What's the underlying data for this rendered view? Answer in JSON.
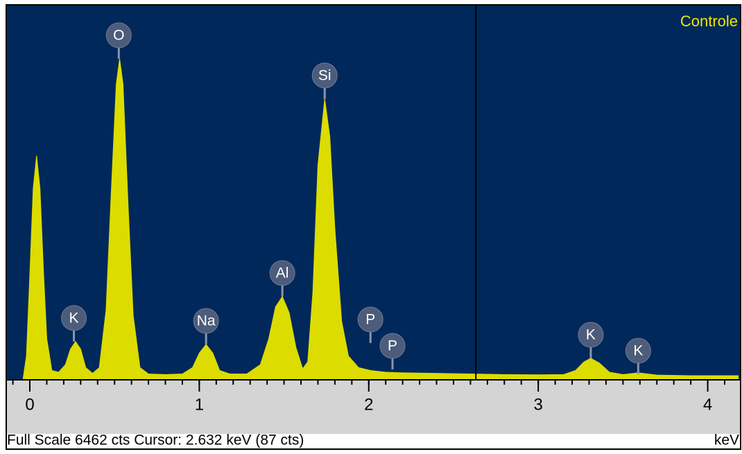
{
  "chart_data": {
    "type": "spectrum",
    "title": "Controle",
    "x_label": "keV",
    "status": "Full Scale 6462 cts  Cursor: 2.632 keV (87 cts)",
    "color": "#dcdc00",
    "background": "#00285a",
    "xlim": [
      -0.135,
      4.19
    ],
    "ylim": [
      0,
      6462
    ],
    "xticks": [
      0,
      1,
      2,
      3,
      4
    ],
    "xminor_step": 0.1,
    "cursor": 2.632,
    "x": [
      -0.04,
      -0.02,
      0.0,
      0.02,
      0.04,
      0.06,
      0.08,
      0.1,
      0.13,
      0.17,
      0.21,
      0.24,
      0.27,
      0.3,
      0.33,
      0.37,
      0.41,
      0.45,
      0.48,
      0.51,
      0.53,
      0.55,
      0.58,
      0.61,
      0.65,
      0.7,
      0.8,
      0.9,
      0.96,
      1.0,
      1.04,
      1.08,
      1.12,
      1.18,
      1.28,
      1.36,
      1.41,
      1.45,
      1.49,
      1.53,
      1.57,
      1.61,
      1.64,
      1.67,
      1.7,
      1.74,
      1.77,
      1.8,
      1.84,
      1.88,
      1.94,
      2.01,
      2.1,
      2.2,
      2.4,
      2.6,
      2.8,
      3.0,
      3.15,
      3.22,
      3.27,
      3.31,
      3.36,
      3.42,
      3.5,
      3.59,
      3.7,
      3.9,
      4.18
    ],
    "values": [
      0,
      400,
      1800,
      3300,
      3864,
      3300,
      1900,
      700,
      150,
      120,
      250,
      520,
      650,
      520,
      200,
      100,
      200,
      1200,
      3200,
      5100,
      5540,
      5100,
      3000,
      1100,
      200,
      90,
      80,
      90,
      200,
      450,
      600,
      450,
      150,
      90,
      90,
      250,
      700,
      1250,
      1428,
      1150,
      550,
      180,
      300,
      1500,
      3700,
      4845,
      4200,
      2600,
      1000,
      400,
      200,
      150,
      120,
      110,
      100,
      90,
      80,
      75,
      80,
      150,
      300,
      360,
      280,
      120,
      80,
      110,
      70,
      60,
      60
    ],
    "peak_labels": [
      {
        "label": "K",
        "x": 0.26,
        "y": 650
      },
      {
        "label": "O",
        "x": 0.525,
        "y": 5540
      },
      {
        "label": "Na",
        "x": 1.04,
        "y": 600
      },
      {
        "label": "Al",
        "x": 1.49,
        "y": 1428
      },
      {
        "label": "Si",
        "x": 1.74,
        "y": 4845
      },
      {
        "label": "P",
        "x": 2.01,
        "y": 624
      },
      {
        "label": "P",
        "x": 2.14,
        "y": 168
      },
      {
        "label": "K",
        "x": 3.31,
        "y": 360
      },
      {
        "label": "K",
        "x": 3.59,
        "y": 84
      }
    ]
  }
}
